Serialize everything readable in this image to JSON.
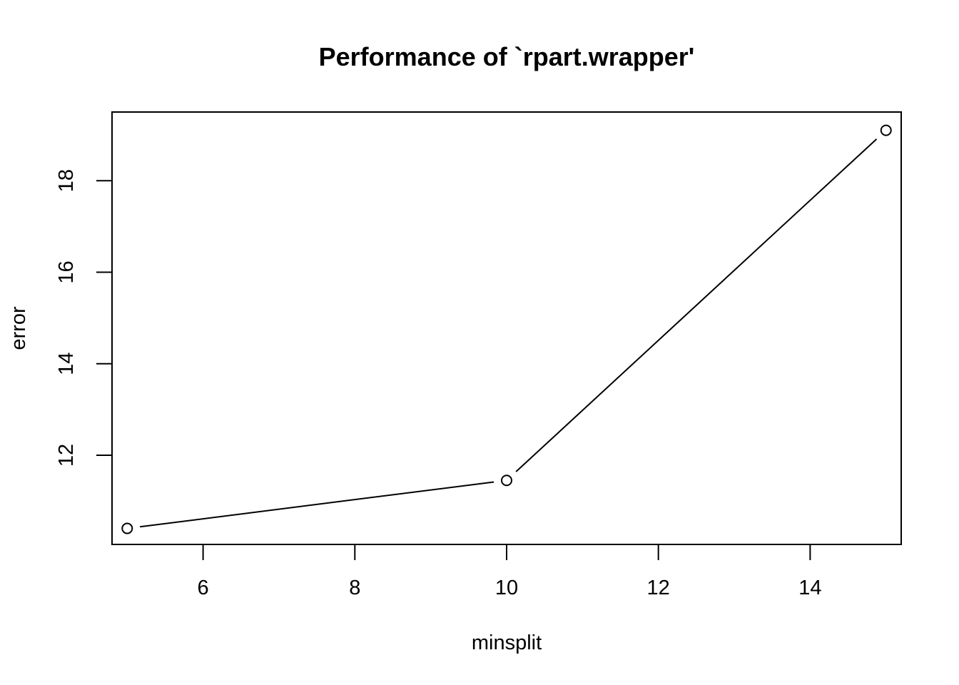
{
  "chart_data": {
    "type": "line",
    "title": "Performance of `rpart.wrapper'",
    "xlabel": "minsplit",
    "ylabel": "error",
    "xlim": [
      4.8,
      15.2
    ],
    "ylim": [
      10.05,
      19.5
    ],
    "xticks": [
      6,
      8,
      10,
      12,
      14
    ],
    "yticks": [
      12,
      14,
      16,
      18
    ],
    "grid": false,
    "series": [
      {
        "x": [
          5,
          10,
          15
        ],
        "values": [
          10.4,
          11.45,
          19.1
        ]
      }
    ],
    "line_color": "#000000",
    "marker": "open-circle"
  }
}
